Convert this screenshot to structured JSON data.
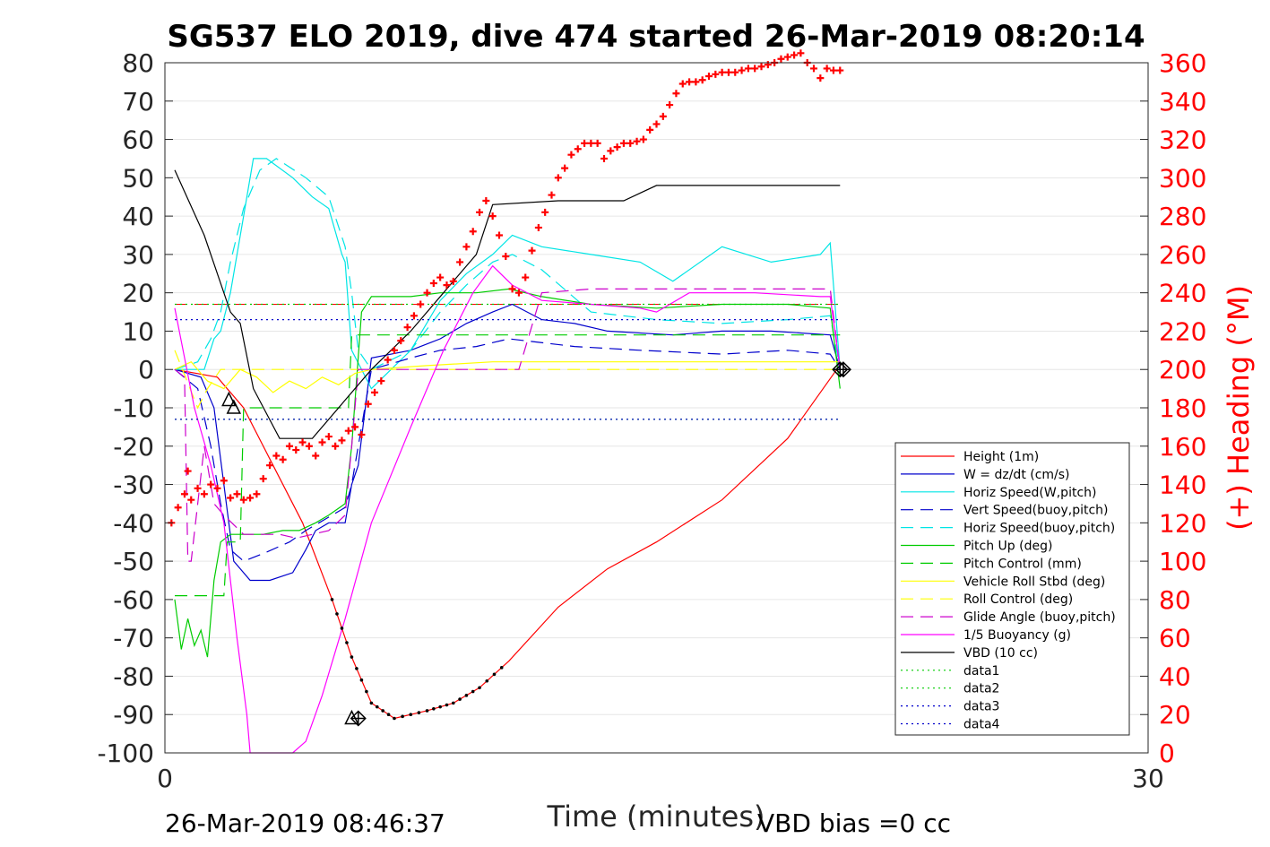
{
  "title": "SG537 ELO 2019, dive 474 started 26-Mar-2019 08:20:14",
  "footer_left": "26-Mar-2019 08:46:37",
  "footer_right": "VBD bias =0 cc",
  "chart_data": {
    "type": "line",
    "xlabel": "Time (minutes)",
    "ylabel": "",
    "y2label": "(+) Heading (°M)",
    "xlim": [
      0,
      30
    ],
    "ylim": [
      -100,
      80
    ],
    "y2lim": [
      0,
      360
    ],
    "x_ticks": [
      "0",
      "30"
    ],
    "y_ticks": [
      "80",
      "70",
      "60",
      "50",
      "40",
      "30",
      "20",
      "10",
      "0",
      "-10",
      "-20",
      "-30",
      "-40",
      "-50",
      "-60",
      "-70",
      "-80",
      "-90",
      "-100"
    ],
    "y2_ticks": [
      "360",
      "340",
      "320",
      "300",
      "280",
      "260",
      "240",
      "220",
      "200",
      "180",
      "160",
      "140",
      "120",
      "100",
      "80",
      "60",
      "40",
      "20",
      "0"
    ],
    "grid": "horizontal",
    "legend_position": "lower-right",
    "series": [
      {
        "name": "Height (1m)",
        "color": "#ff0000",
        "style": "solid",
        "axis": "left",
        "x": [
          0.3,
          1.6,
          2.4,
          3.3,
          4.2,
          5.1,
          5.7,
          6.3,
          7.0,
          8.0,
          8.8,
          9.6,
          10.5,
          12.0,
          13.5,
          15.0,
          17.0,
          19.0,
          20.5
        ],
        "y": [
          0,
          -2,
          -10,
          -25,
          -40,
          -60,
          -75,
          -87,
          -91,
          -89,
          -87,
          -83,
          -76,
          -62,
          -52,
          -45,
          -34,
          -18,
          0
        ]
      },
      {
        "name": "W = dz/dt (cm/s)",
        "color": "#0000cc",
        "style": "solid",
        "axis": "left",
        "x": [
          0.3,
          1.1,
          1.5,
          1.8,
          2.1,
          2.6,
          3.2,
          3.9,
          4.3,
          4.6,
          5.0,
          5.5,
          5.7,
          5.9,
          6.3,
          7.5,
          8.4,
          9.2,
          10.0,
          10.6,
          11.5,
          12.5,
          13.5,
          15.5,
          17.0,
          18.5,
          20.3,
          20.6
        ],
        "y": [
          0,
          -2,
          -10,
          -30,
          -50,
          -55,
          -55,
          -53,
          -47,
          -42,
          -40,
          -40,
          -30,
          -25,
          3,
          5,
          8,
          12,
          15,
          17,
          13,
          12,
          10,
          9,
          10,
          10,
          9,
          0
        ]
      },
      {
        "name": "Horiz Speed(W,pitch)",
        "color": "#00e5e5",
        "style": "solid",
        "axis": "left",
        "x": [
          0.3,
          1.2,
          1.5,
          1.7,
          2.0,
          2.4,
          2.7,
          3.1,
          3.9,
          4.5,
          5.0,
          5.4,
          5.5,
          5.7,
          6.3,
          7.5,
          8.4,
          9.2,
          10.0,
          10.6,
          11.5,
          13.0,
          14.5,
          15.5,
          17.0,
          18.5,
          20.0,
          20.3,
          20.6
        ],
        "y": [
          0,
          0,
          8,
          10,
          20,
          40,
          55,
          55,
          50,
          45,
          42,
          30,
          28,
          5,
          -5,
          5,
          18,
          25,
          30,
          35,
          32,
          30,
          28,
          23,
          32,
          28,
          30,
          33,
          0
        ]
      },
      {
        "name": "Vert Speed(buoy,pitch)",
        "color": "#0000cc",
        "style": "dashed",
        "axis": "left",
        "x": [
          0.3,
          1.0,
          1.4,
          1.7,
          2.0,
          2.4,
          3.0,
          3.8,
          4.3,
          4.7,
          5.1,
          5.5,
          5.7,
          5.9,
          6.3,
          7.5,
          8.4,
          9.5,
          10.5,
          12.5,
          14.5,
          17.0,
          19.0,
          20.3,
          20.6
        ],
        "y": [
          0,
          -5,
          -20,
          -35,
          -47,
          -50,
          -48,
          -45,
          -42,
          -40,
          -38,
          -36,
          -30,
          -20,
          0,
          3,
          5,
          6,
          8,
          6,
          5,
          4,
          5,
          4,
          0
        ]
      },
      {
        "name": "Horiz Speed(buoy,pitch)",
        "color": "#00e5e5",
        "style": "dashed",
        "axis": "left",
        "x": [
          0.3,
          1.0,
          1.4,
          1.7,
          2.0,
          2.4,
          2.9,
          3.4,
          4.3,
          5.0,
          5.5,
          5.7,
          5.9,
          6.3,
          7.5,
          8.4,
          9.2,
          10.0,
          10.6,
          11.5,
          13.0,
          15.0,
          17.0,
          19.0,
          20.3,
          20.6
        ],
        "y": [
          0,
          2,
          8,
          15,
          28,
          42,
          52,
          55,
          50,
          45,
          32,
          20,
          5,
          0,
          5,
          15,
          22,
          28,
          30,
          26,
          15,
          13,
          12,
          13,
          14,
          0
        ]
      },
      {
        "name": "Pitch Up (deg)",
        "color": "#00cc00",
        "style": "solid",
        "axis": "left",
        "x": [
          0.3,
          0.5,
          0.7,
          0.9,
          1.1,
          1.3,
          1.5,
          1.7,
          2.0,
          2.5,
          3.0,
          3.6,
          4.1,
          4.6,
          5.0,
          5.5,
          5.7,
          6.0,
          6.3,
          7.5,
          8.4,
          9.5,
          10.5,
          11.5,
          13.0,
          15.0,
          17.0,
          19.0,
          20.3,
          20.6
        ],
        "y": [
          -60,
          -73,
          -65,
          -72,
          -68,
          -75,
          -55,
          -45,
          -43,
          -43,
          -43,
          -42,
          -42,
          -40,
          -38,
          -35,
          -20,
          15,
          19,
          19,
          20,
          20,
          21,
          19,
          17,
          16,
          17,
          17,
          16,
          -5
        ]
      },
      {
        "name": "Pitch Control (mm)",
        "color": "#00cc00",
        "style": "dashed",
        "axis": "left",
        "x": [
          0.3,
          1.8,
          1.9,
          2.3,
          2.4,
          5.6,
          5.7,
          6.3,
          20.6
        ],
        "y": [
          -59,
          -59,
          -45,
          -45,
          -10,
          -10,
          9,
          9,
          9
        ]
      },
      {
        "name": "Vehicle Roll Stbd (deg)",
        "color": "#ffff00",
        "style": "solid",
        "axis": "left",
        "x": [
          0.3,
          0.8,
          1.3,
          1.8,
          2.3,
          2.8,
          3.3,
          3.8,
          4.3,
          4.8,
          5.3,
          5.8,
          6.3,
          8.0,
          10.0,
          13.0,
          16.0,
          19.0,
          20.6
        ],
        "y": [
          0,
          2,
          -3,
          -5,
          0,
          -2,
          -6,
          -3,
          -5,
          -2,
          -4,
          -1,
          0,
          1,
          2,
          2,
          2,
          2,
          2
        ]
      },
      {
        "name": "Roll Control (deg)",
        "color": "#ffff00",
        "style": "dashed",
        "axis": "left",
        "x": [
          0.3,
          1.0,
          1.3,
          1.7,
          2.0,
          20.6
        ],
        "y": [
          5,
          -10,
          -5,
          0,
          0,
          0
        ]
      },
      {
        "name": "Glide Angle (buoy,pitch)",
        "color": "#cc00cc",
        "style": "dashed",
        "axis": "left",
        "x": [
          0.3,
          0.6,
          0.7,
          0.8,
          1.2,
          1.5,
          1.8,
          2.4,
          3.0,
          3.5,
          4.0,
          4.5,
          5.0,
          5.5,
          5.7,
          5.9,
          6.3,
          8.0,
          9.0,
          10.0,
          10.8,
          11.5,
          13.0,
          15.0,
          17.0,
          19.0,
          20.3,
          20.6
        ],
        "y": [
          0,
          -2,
          -50,
          -50,
          -20,
          -35,
          -38,
          -43,
          -43,
          -43,
          -44,
          -43,
          -42,
          -38,
          -20,
          0,
          0,
          0,
          0,
          0,
          0,
          20,
          21,
          21,
          21,
          21,
          21,
          0
        ]
      },
      {
        "name": "1/5 Buoyancy (g)",
        "color": "#ff00ff",
        "style": "solid",
        "axis": "left",
        "x": [
          0.3,
          0.9,
          1.4,
          1.8,
          2.2,
          2.5,
          2.6,
          3.6,
          3.9,
          4.3,
          4.8,
          5.5,
          6.3,
          7.5,
          8.5,
          9.4,
          10.0,
          10.6,
          11.5,
          13.0,
          14.5,
          15.0,
          16.0,
          18.0,
          20.0,
          20.3,
          20.6
        ],
        "y": [
          16,
          -10,
          -25,
          -40,
          -70,
          -90,
          -100,
          -100,
          -100,
          -97,
          -85,
          -65,
          -40,
          -15,
          5,
          20,
          27,
          22,
          18,
          17,
          16,
          15,
          20,
          20,
          19,
          19,
          0
        ]
      },
      {
        "name": "VBD (10 cc)",
        "color": "#000000",
        "style": "solid",
        "axis": "left",
        "x": [
          0.3,
          1.2,
          2.0,
          2.3,
          2.7,
          3.5,
          4.5,
          5.5,
          6.3,
          7.5,
          8.5,
          9.5,
          10.0,
          12.0,
          14.0,
          14.5,
          15.0,
          20.6
        ],
        "y": [
          52,
          35,
          15,
          12,
          -5,
          -18,
          -18,
          -8,
          0,
          10,
          20,
          30,
          43,
          44,
          44,
          46,
          48,
          48
        ]
      },
      {
        "name": "data1",
        "color": "#00cc00",
        "style": "dotted",
        "axis": "left",
        "x": [
          0.3,
          20.6
        ],
        "y": [
          17,
          17
        ]
      },
      {
        "name": "data2",
        "color": "#00cc00",
        "style": "dotted",
        "axis": "left",
        "x": [
          0.3,
          20.6
        ],
        "y": [
          -13,
          -13
        ]
      },
      {
        "name": "data3",
        "color": "#0000cc",
        "style": "dotted",
        "axis": "left",
        "x": [
          0.3,
          20.6
        ],
        "y": [
          13,
          13
        ]
      },
      {
        "name": "data4",
        "color": "#0000cc",
        "style": "dotted",
        "axis": "left",
        "x": [
          0.3,
          20.6
        ],
        "y": [
          -13,
          -13
        ]
      }
    ],
    "reference_lines": [
      {
        "color": "#ff0000",
        "style": "dashed",
        "axis": "left",
        "y": 17,
        "x": [
          0.3,
          20.6
        ]
      }
    ],
    "heading_series": {
      "name": "(+) Heading (°M)",
      "color": "#ff0000",
      "marker": "+",
      "axis": "right",
      "x": [
        0.2,
        0.4,
        0.6,
        0.7,
        0.8,
        1.0,
        1.2,
        1.4,
        1.6,
        1.8,
        2.0,
        2.2,
        2.4,
        2.6,
        2.8,
        3.0,
        3.2,
        3.4,
        3.6,
        3.8,
        4.0,
        4.2,
        4.4,
        4.6,
        4.8,
        5.0,
        5.2,
        5.4,
        5.6,
        5.8,
        6.0,
        6.2,
        6.4,
        6.6,
        6.8,
        7.0,
        7.2,
        7.4,
        7.6,
        7.8,
        8.0,
        8.2,
        8.4,
        8.6,
        8.8,
        9.0,
        9.2,
        9.4,
        9.6,
        9.8,
        10.0,
        10.2,
        10.4,
        10.6,
        10.8,
        11.0,
        11.2,
        11.4,
        11.6,
        11.8,
        12.0,
        12.2,
        12.4,
        12.6,
        12.8,
        13.0,
        13.2,
        13.4,
        13.6,
        13.8,
        14.0,
        14.2,
        14.4,
        14.6,
        14.8,
        15.0,
        15.2,
        15.4,
        15.6,
        15.8,
        16.0,
        16.2,
        16.4,
        16.6,
        16.8,
        17.0,
        17.2,
        17.4,
        17.6,
        17.8,
        18.0,
        18.2,
        18.4,
        18.6,
        18.8,
        19.0,
        19.2,
        19.4,
        19.6,
        19.8,
        20.0,
        20.2,
        20.4,
        20.6
      ],
      "y": [
        120,
        128,
        135,
        147,
        132,
        138,
        135,
        140,
        138,
        142,
        133,
        135,
        132,
        133,
        135,
        143,
        150,
        155,
        153,
        160,
        158,
        162,
        160,
        155,
        162,
        165,
        160,
        163,
        168,
        170,
        166,
        182,
        188,
        194,
        205,
        210,
        215,
        222,
        228,
        234,
        240,
        245,
        248,
        244,
        246,
        256,
        264,
        272,
        282,
        288,
        280,
        270,
        259,
        242,
        240,
        248,
        262,
        274,
        282,
        291,
        300,
        305,
        312,
        315,
        318,
        318,
        318,
        310,
        314,
        316,
        318,
        318,
        319,
        320,
        325,
        328,
        332,
        338,
        344,
        349,
        350,
        350,
        351,
        353,
        354,
        355,
        355,
        355,
        356,
        357,
        357,
        358,
        359,
        360,
        362,
        363,
        364,
        365,
        360,
        357,
        352,
        357,
        356,
        356
      ]
    },
    "markers": [
      {
        "symbol": "triangle",
        "x": 1.95,
        "y": -8
      },
      {
        "symbol": "triangle",
        "x": 2.1,
        "y": -10
      },
      {
        "symbol": "triangle",
        "x": 5.7,
        "y": -91
      },
      {
        "symbol": "diamond-cross",
        "x": 5.9,
        "y": -91
      },
      {
        "symbol": "diamond-cross",
        "x": 20.6,
        "y": 0
      },
      {
        "symbol": "diamond-cross",
        "x": 20.7,
        "y": 0
      }
    ]
  }
}
